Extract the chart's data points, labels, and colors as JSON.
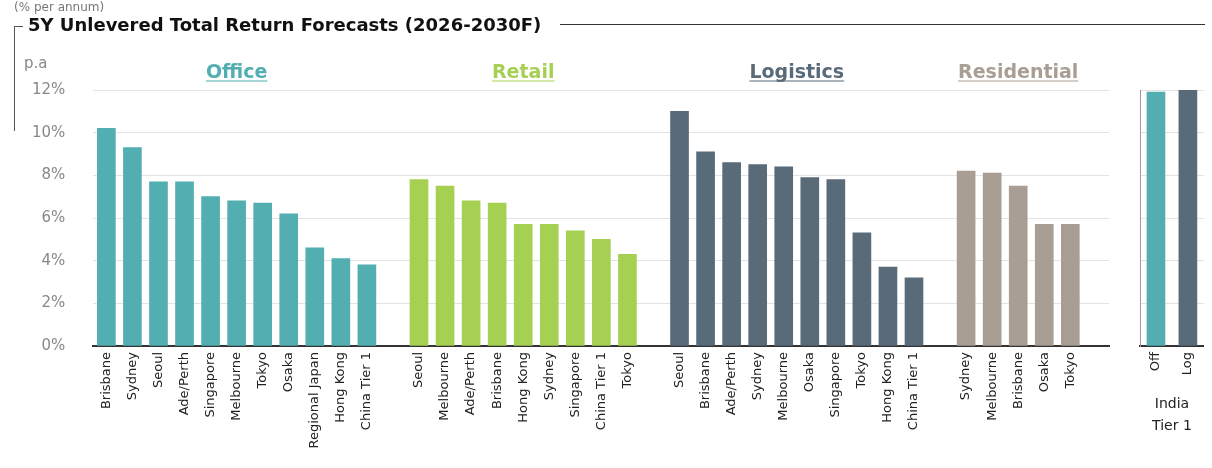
{
  "chart_data": [
    {
      "type": "bar",
      "title": "5Y Unlevered Total Return Forecasts (2026-2030F)",
      "subtitle": "(% per annum)",
      "ylabel": "p.a",
      "categories": [
        "Brisbane",
        "Sydney",
        "Seoul",
        "Ade/Perth",
        "Singapore",
        "Melbourne",
        "Tokyo",
        "Osaka",
        "Regional Japan",
        "Hong Kong",
        "China Tier 1",
        null,
        "Seoul",
        "Melbourne",
        "Ade/Perth",
        "Brisbane",
        "Hong Kong",
        "Sydney",
        "Singapore",
        "China Tier 1",
        "Tokyo",
        null,
        "Seoul",
        "Brisbane",
        "Ade/Perth",
        "Sydney",
        "Melbourne",
        "Osaka",
        "Singapore",
        "Tokyo",
        "Hong Kong",
        "China Tier 1",
        null,
        "Sydney",
        "Melbourne",
        "Brisbane",
        "Osaka",
        "Tokyo",
        null
      ],
      "series": [
        {
          "name": "Office",
          "color": "#52aeb0",
          "values": [
            10.2,
            9.3,
            7.7,
            7.7,
            7.0,
            6.8,
            6.7,
            6.2,
            4.6,
            4.1,
            3.8,
            null,
            null,
            null,
            null,
            null,
            null,
            null,
            null,
            null,
            null,
            null,
            null,
            null,
            null,
            null,
            null,
            null,
            null,
            null,
            null,
            null,
            null,
            null,
            null,
            null,
            null,
            null,
            null
          ]
        },
        {
          "name": "Retail",
          "color": "#a6d052",
          "values": [
            null,
            null,
            null,
            null,
            null,
            null,
            null,
            null,
            null,
            null,
            null,
            null,
            7.8,
            7.5,
            6.8,
            6.7,
            5.7,
            5.7,
            5.4,
            5.0,
            4.3,
            null,
            null,
            null,
            null,
            null,
            null,
            null,
            null,
            null,
            null,
            null,
            null,
            null,
            null,
            null,
            null,
            null,
            null
          ]
        },
        {
          "name": "Logistics",
          "color": "#596a78",
          "values": [
            null,
            null,
            null,
            null,
            null,
            null,
            null,
            null,
            null,
            null,
            null,
            null,
            null,
            null,
            null,
            null,
            null,
            null,
            null,
            null,
            null,
            null,
            11.0,
            9.1,
            8.6,
            8.5,
            8.4,
            7.9,
            7.8,
            5.3,
            3.7,
            3.2,
            null,
            null,
            null,
            null,
            null,
            null,
            null
          ]
        },
        {
          "name": "Residential",
          "color": "#a89e94",
          "values": [
            null,
            null,
            null,
            null,
            null,
            null,
            null,
            null,
            null,
            null,
            null,
            null,
            null,
            null,
            null,
            null,
            null,
            null,
            null,
            null,
            null,
            null,
            null,
            null,
            null,
            null,
            null,
            null,
            null,
            null,
            null,
            null,
            null,
            8.2,
            8.1,
            7.5,
            5.7,
            5.7,
            null
          ]
        }
      ],
      "ylim": [
        0,
        12
      ],
      "yticks": [
        {
          "value": 0,
          "label": "0%"
        },
        {
          "value": 2,
          "label": "2%"
        },
        {
          "value": 4,
          "label": "4%"
        },
        {
          "value": 6,
          "label": "6%"
        },
        {
          "value": 8,
          "label": "8%"
        },
        {
          "value": 10,
          "label": "10%"
        },
        {
          "value": 12,
          "label": "12%"
        }
      ],
      "grid": "y",
      "legend": false
    },
    {
      "type": "bar",
      "categories": [
        "Off",
        "Log"
      ],
      "series": [
        {
          "color": "#52aeb0",
          "values": [
            11.9,
            null
          ]
        },
        {
          "color": "#596a78",
          "values": [
            null,
            12.0
          ]
        }
      ],
      "ylim": [
        0,
        12
      ],
      "grid": "y",
      "legend": false,
      "tick_labels": "x",
      "yticks": [
        0,
        2,
        4,
        6,
        8,
        10,
        12
      ],
      "annotations": [
        "India Tier 1"
      ]
    }
  ]
}
